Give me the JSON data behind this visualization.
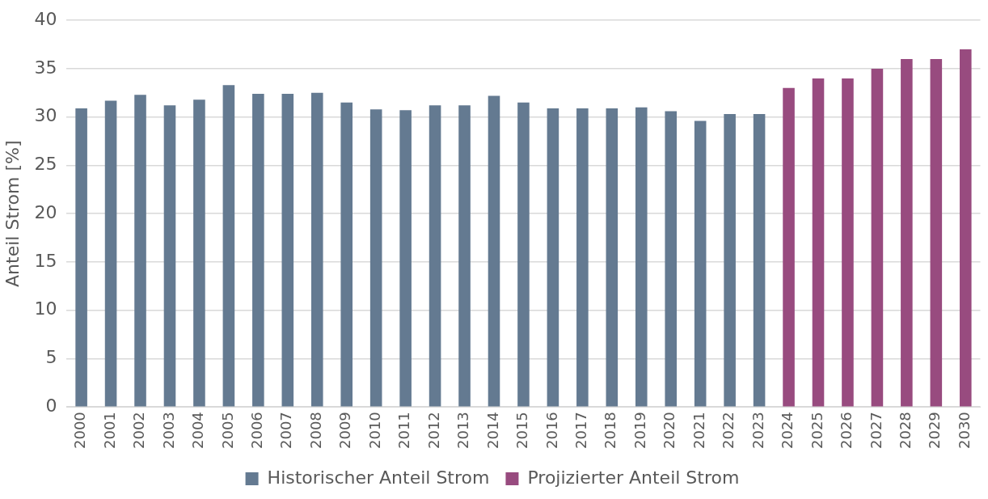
{
  "chart_data": {
    "type": "bar",
    "ylabel": "Anteil Strom [%]",
    "categories": [
      "2000",
      "2001",
      "2002",
      "2003",
      "2004",
      "2005",
      "2006",
      "2007",
      "2008",
      "2009",
      "2010",
      "2011",
      "2012",
      "2013",
      "2014",
      "2015",
      "2016",
      "2017",
      "2018",
      "2019",
      "2020",
      "2021",
      "2022",
      "2023",
      "2024",
      "2025",
      "2026",
      "2027",
      "2028",
      "2029",
      "2030"
    ],
    "series": [
      {
        "name": "Historischer Anteil Strom",
        "color": "#647a91",
        "values": [
          30.9,
          31.7,
          32.3,
          31.2,
          31.8,
          33.3,
          32.4,
          32.4,
          32.5,
          31.5,
          30.8,
          30.7,
          31.2,
          31.2,
          32.2,
          31.5,
          30.9,
          30.9,
          30.9,
          31.0,
          30.6,
          29.6,
          30.3,
          30.3,
          null,
          null,
          null,
          null,
          null,
          null,
          null
        ]
      },
      {
        "name": "Projizierter Anteil Strom",
        "color": "#984b7f",
        "values": [
          null,
          null,
          null,
          null,
          null,
          null,
          null,
          null,
          null,
          null,
          null,
          null,
          null,
          null,
          null,
          null,
          null,
          null,
          null,
          null,
          null,
          null,
          null,
          null,
          33,
          34,
          34,
          35,
          36,
          36,
          37
        ]
      }
    ],
    "ylim": [
      0,
      40
    ],
    "yticks": [
      0,
      5,
      10,
      15,
      20,
      25,
      30,
      35,
      40
    ],
    "grid": "y",
    "legend": "bottom"
  }
}
